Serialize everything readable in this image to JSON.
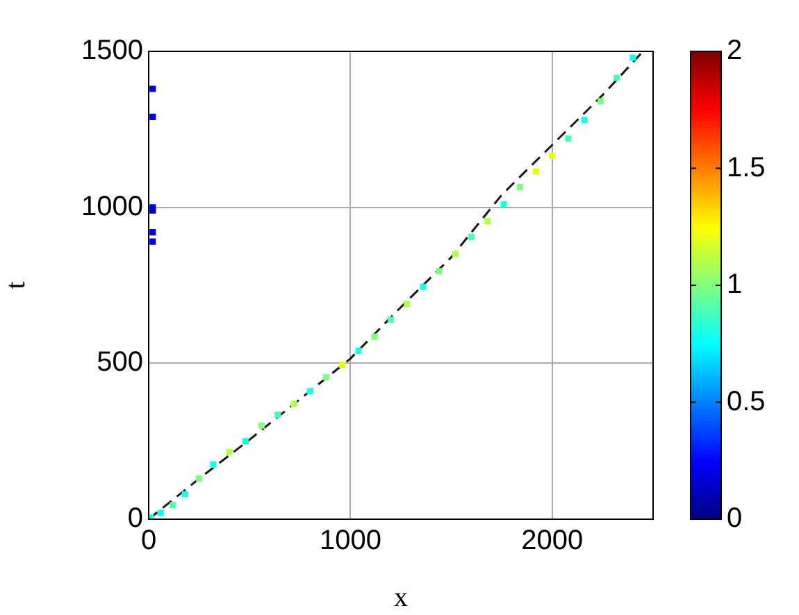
{
  "chart_data": {
    "type": "scatter",
    "xlabel": "x",
    "ylabel": "t",
    "xlim": [
      0,
      2500
    ],
    "ylim": [
      0,
      1500
    ],
    "xticks": [
      0,
      1000,
      2000
    ],
    "yticks": [
      0,
      500,
      1000,
      1500
    ],
    "grid": true,
    "legend": false,
    "clim": [
      0,
      2
    ],
    "cticks": [
      0,
      0.5,
      1,
      1.5,
      2
    ],
    "series": [
      {
        "type": "scatter",
        "marker": "square",
        "x": [
          10,
          60,
          120,
          180,
          250,
          320,
          400,
          480,
          560,
          640,
          720,
          800,
          880,
          960,
          1040,
          1120,
          1200,
          1280,
          1360,
          1440,
          1520,
          1600,
          1680,
          1760,
          1840,
          1920,
          2000,
          2080,
          2160,
          2240,
          2320,
          2400,
          20,
          20,
          20,
          20,
          20,
          20
        ],
        "values": [
          5,
          20,
          45,
          80,
          130,
          175,
          215,
          250,
          300,
          335,
          370,
          410,
          455,
          495,
          540,
          585,
          640,
          690,
          745,
          795,
          850,
          905,
          955,
          1010,
          1065,
          1115,
          1165,
          1220,
          1280,
          1340,
          1415,
          1480,
          890,
          920,
          990,
          1000,
          1290,
          1380
        ],
        "colors": [
          "#1affe6",
          "#1affe6",
          "#4dffb3",
          "#1affe6",
          "#80ff80",
          "#1affe6",
          "#b3ff4d",
          "#1affe6",
          "#80ff80",
          "#4dffb3",
          "#b3ff4d",
          "#1affe6",
          "#80ff80",
          "#e6ff1a",
          "#1affe6",
          "#80ff80",
          "#4dffb3",
          "#b3ff4d",
          "#1affe6",
          "#80ff80",
          "#b3ff4d",
          "#4dffb3",
          "#b3ff4d",
          "#1affe6",
          "#80ff80",
          "#e6ff1a",
          "#e6ff1a",
          "#4dffb3",
          "#1affe6",
          "#80ff80",
          "#4dffb3",
          "#1affe6",
          "#0000e6",
          "#0000e6",
          "#0000b3",
          "#0000e6",
          "#0000e6",
          "#0000e6"
        ],
        "cvalues": [
          0.8,
          0.8,
          0.9,
          0.8,
          1.0,
          0.8,
          1.1,
          0.8,
          1.0,
          0.9,
          1.1,
          0.8,
          1.0,
          1.2,
          0.8,
          1.0,
          0.9,
          1.1,
          0.8,
          1.0,
          1.1,
          0.9,
          1.1,
          0.8,
          1.0,
          1.2,
          1.2,
          0.9,
          0.8,
          1.0,
          0.9,
          0.8,
          0.2,
          0.2,
          0.1,
          0.2,
          0.2,
          0.2
        ]
      },
      {
        "type": "line",
        "color": "#1a1a1a",
        "line_style": "dashed",
        "marker": "none",
        "x": [
          0,
          250,
          500,
          750,
          1000,
          1250,
          1500,
          1750,
          2000,
          2250,
          2450
        ],
        "values": [
          0,
          130,
          255,
          385,
          515,
          680,
          840,
          1040,
          1200,
          1360,
          1500
        ]
      }
    ]
  }
}
